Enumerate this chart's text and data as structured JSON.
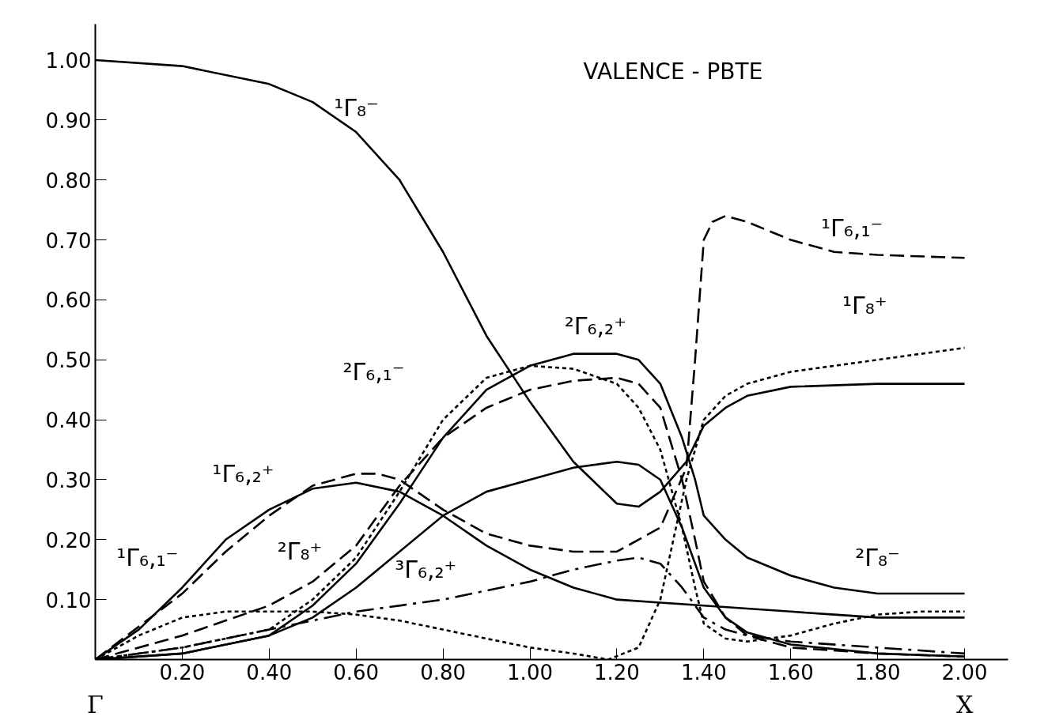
{
  "chart_data": {
    "type": "line",
    "title": "VALENCE - PBTE",
    "xlim": [
      0,
      2.1
    ],
    "ylim": [
      0,
      1.06
    ],
    "xticks": [
      {
        "value": 0.2,
        "label": "0.20"
      },
      {
        "value": 0.4,
        "label": "0.40"
      },
      {
        "value": 0.6,
        "label": "0.60"
      },
      {
        "value": 0.8,
        "label": "0.80"
      },
      {
        "value": 1.0,
        "label": "1.00"
      },
      {
        "value": 1.2,
        "label": "1.20"
      },
      {
        "value": 1.4,
        "label": "1.40"
      },
      {
        "value": 1.6,
        "label": "1.60"
      },
      {
        "value": 1.8,
        "label": "1.80"
      },
      {
        "value": 2.0,
        "label": "2.00"
      }
    ],
    "yticks": [
      {
        "value": 0.1,
        "label": "0.10"
      },
      {
        "value": 0.2,
        "label": "0.20"
      },
      {
        "value": 0.3,
        "label": "0.30"
      },
      {
        "value": 0.4,
        "label": "0.40"
      },
      {
        "value": 0.5,
        "label": "0.50"
      },
      {
        "value": 0.6,
        "label": "0.60"
      },
      {
        "value": 0.7,
        "label": "0.70"
      },
      {
        "value": 0.8,
        "label": "0.80"
      },
      {
        "value": 0.9,
        "label": "0.90"
      },
      {
        "value": 1.0,
        "label": "1.00"
      }
    ],
    "grid": false,
    "marker": "none",
    "series": [
      {
        "color": "#000000",
        "line_style": "solid",
        "x": [
          0,
          0.2,
          0.4,
          0.5,
          0.6,
          0.7,
          0.8,
          0.9,
          1.0,
          1.1,
          1.2,
          1.25,
          1.3,
          1.36,
          1.4,
          1.45,
          1.5,
          1.6,
          1.8,
          2.0
        ],
        "values": [
          1.0,
          0.99,
          0.96,
          0.93,
          0.88,
          0.8,
          0.68,
          0.54,
          0.43,
          0.33,
          0.26,
          0.255,
          0.28,
          0.33,
          0.39,
          0.42,
          0.44,
          0.455,
          0.46,
          0.46
        ]
      },
      {
        "color": "#000000",
        "line_style": "solid",
        "x": [
          0,
          0.2,
          0.4,
          0.5,
          0.6,
          0.7,
          0.8,
          0.9,
          1.0,
          1.1,
          1.2,
          1.25,
          1.3,
          1.35,
          1.38,
          1.4,
          1.45,
          1.5,
          1.6,
          1.7,
          1.8,
          2.0
        ],
        "values": [
          0,
          0.01,
          0.04,
          0.09,
          0.16,
          0.26,
          0.37,
          0.45,
          0.49,
          0.51,
          0.51,
          0.5,
          0.46,
          0.37,
          0.3,
          0.24,
          0.2,
          0.17,
          0.14,
          0.12,
          0.11,
          0.11
        ]
      },
      {
        "color": "#000000",
        "line_style": "dashed",
        "x": [
          0,
          0.2,
          0.3,
          0.4,
          0.5,
          0.6,
          0.65,
          0.7,
          0.8,
          0.9,
          1.0,
          1.1,
          1.2,
          1.3,
          1.36,
          1.38,
          1.4,
          1.42,
          1.45,
          1.5,
          1.6,
          1.7,
          1.8,
          2.0
        ],
        "values": [
          0,
          0.11,
          0.18,
          0.24,
          0.29,
          0.31,
          0.31,
          0.3,
          0.25,
          0.21,
          0.19,
          0.18,
          0.18,
          0.22,
          0.32,
          0.5,
          0.7,
          0.73,
          0.74,
          0.73,
          0.7,
          0.68,
          0.675,
          0.67
        ]
      },
      {
        "color": "#000000",
        "line_style": "solid",
        "x": [
          0,
          0.1,
          0.2,
          0.3,
          0.4,
          0.5,
          0.6,
          0.7,
          0.8,
          0.9,
          1.0,
          1.1,
          1.2,
          1.3,
          1.4,
          1.5,
          1.6,
          1.7,
          1.8,
          2.0
        ],
        "values": [
          0,
          0.05,
          0.12,
          0.2,
          0.25,
          0.285,
          0.295,
          0.28,
          0.24,
          0.19,
          0.15,
          0.12,
          0.1,
          0.095,
          0.09,
          0.085,
          0.08,
          0.075,
          0.07,
          0.07
        ]
      },
      {
        "color": "#000000",
        "line_style": "dotted",
        "x": [
          0,
          0.2,
          0.4,
          0.5,
          0.6,
          0.7,
          0.8,
          0.9,
          1.0,
          1.1,
          1.2,
          1.25,
          1.3,
          1.35,
          1.38,
          1.4,
          1.45,
          1.5,
          1.6,
          1.7,
          1.8,
          1.9,
          2.0
        ],
        "values": [
          0,
          0.02,
          0.05,
          0.1,
          0.17,
          0.28,
          0.4,
          0.47,
          0.49,
          0.485,
          0.46,
          0.42,
          0.35,
          0.22,
          0.12,
          0.06,
          0.035,
          0.03,
          0.04,
          0.06,
          0.075,
          0.08,
          0.08
        ]
      },
      {
        "color": "#000000",
        "line_style": "dashed",
        "x": [
          0,
          0.2,
          0.4,
          0.5,
          0.6,
          0.7,
          0.8,
          0.9,
          1.0,
          1.1,
          1.2,
          1.25,
          1.3,
          1.35,
          1.38,
          1.4,
          1.45,
          1.5,
          1.6,
          1.8,
          2.0
        ],
        "values": [
          0,
          0.04,
          0.09,
          0.13,
          0.19,
          0.29,
          0.37,
          0.42,
          0.45,
          0.465,
          0.47,
          0.46,
          0.42,
          0.3,
          0.2,
          0.13,
          0.07,
          0.04,
          0.02,
          0.01,
          0.005
        ]
      },
      {
        "color": "#000000",
        "line_style": "solid",
        "x": [
          0,
          0.2,
          0.4,
          0.5,
          0.6,
          0.7,
          0.8,
          0.9,
          1.0,
          1.1,
          1.2,
          1.25,
          1.3,
          1.35,
          1.4,
          1.45,
          1.5,
          1.6,
          1.8,
          2.0
        ],
        "values": [
          0,
          0.01,
          0.04,
          0.07,
          0.12,
          0.18,
          0.24,
          0.28,
          0.3,
          0.32,
          0.33,
          0.325,
          0.3,
          0.22,
          0.12,
          0.07,
          0.045,
          0.025,
          0.01,
          0.005
        ]
      },
      {
        "color": "#000000",
        "line_style": "dashdot",
        "x": [
          0,
          0.2,
          0.4,
          0.6,
          0.8,
          1.0,
          1.1,
          1.2,
          1.25,
          1.3,
          1.35,
          1.4,
          1.45,
          1.5,
          1.6,
          1.8,
          2.0
        ],
        "values": [
          0,
          0.02,
          0.05,
          0.08,
          0.1,
          0.13,
          0.15,
          0.165,
          0.17,
          0.16,
          0.12,
          0.07,
          0.05,
          0.04,
          0.03,
          0.02,
          0.01
        ]
      },
      {
        "color": "#000000",
        "line_style": "dotted",
        "x": [
          0,
          0.1,
          0.2,
          0.3,
          0.4,
          0.5,
          0.6,
          0.7,
          0.8,
          0.9,
          1.0,
          1.1,
          1.18,
          1.25,
          1.3,
          1.33,
          1.36,
          1.4,
          1.45,
          1.5,
          1.6,
          1.8,
          2.0
        ],
        "values": [
          0,
          0.04,
          0.07,
          0.08,
          0.08,
          0.08,
          0.075,
          0.065,
          0.05,
          0.035,
          0.02,
          0.01,
          0.0,
          0.02,
          0.1,
          0.2,
          0.3,
          0.4,
          0.44,
          0.46,
          0.48,
          0.5,
          0.52
        ]
      }
    ],
    "annotations": [
      "¹Γ₈⁻",
      "¹Γ₆,₁⁻",
      "¹Γ₈⁺",
      "²Γ₆,₁⁻",
      "²Γ₆,₂⁺",
      "¹Γ₆,₂⁺",
      "²Γ₈⁺",
      "¹Γ₆,₁⁻",
      "³Γ₆,₂⁺",
      "²Γ₈⁻",
      "Γ",
      "X"
    ]
  }
}
